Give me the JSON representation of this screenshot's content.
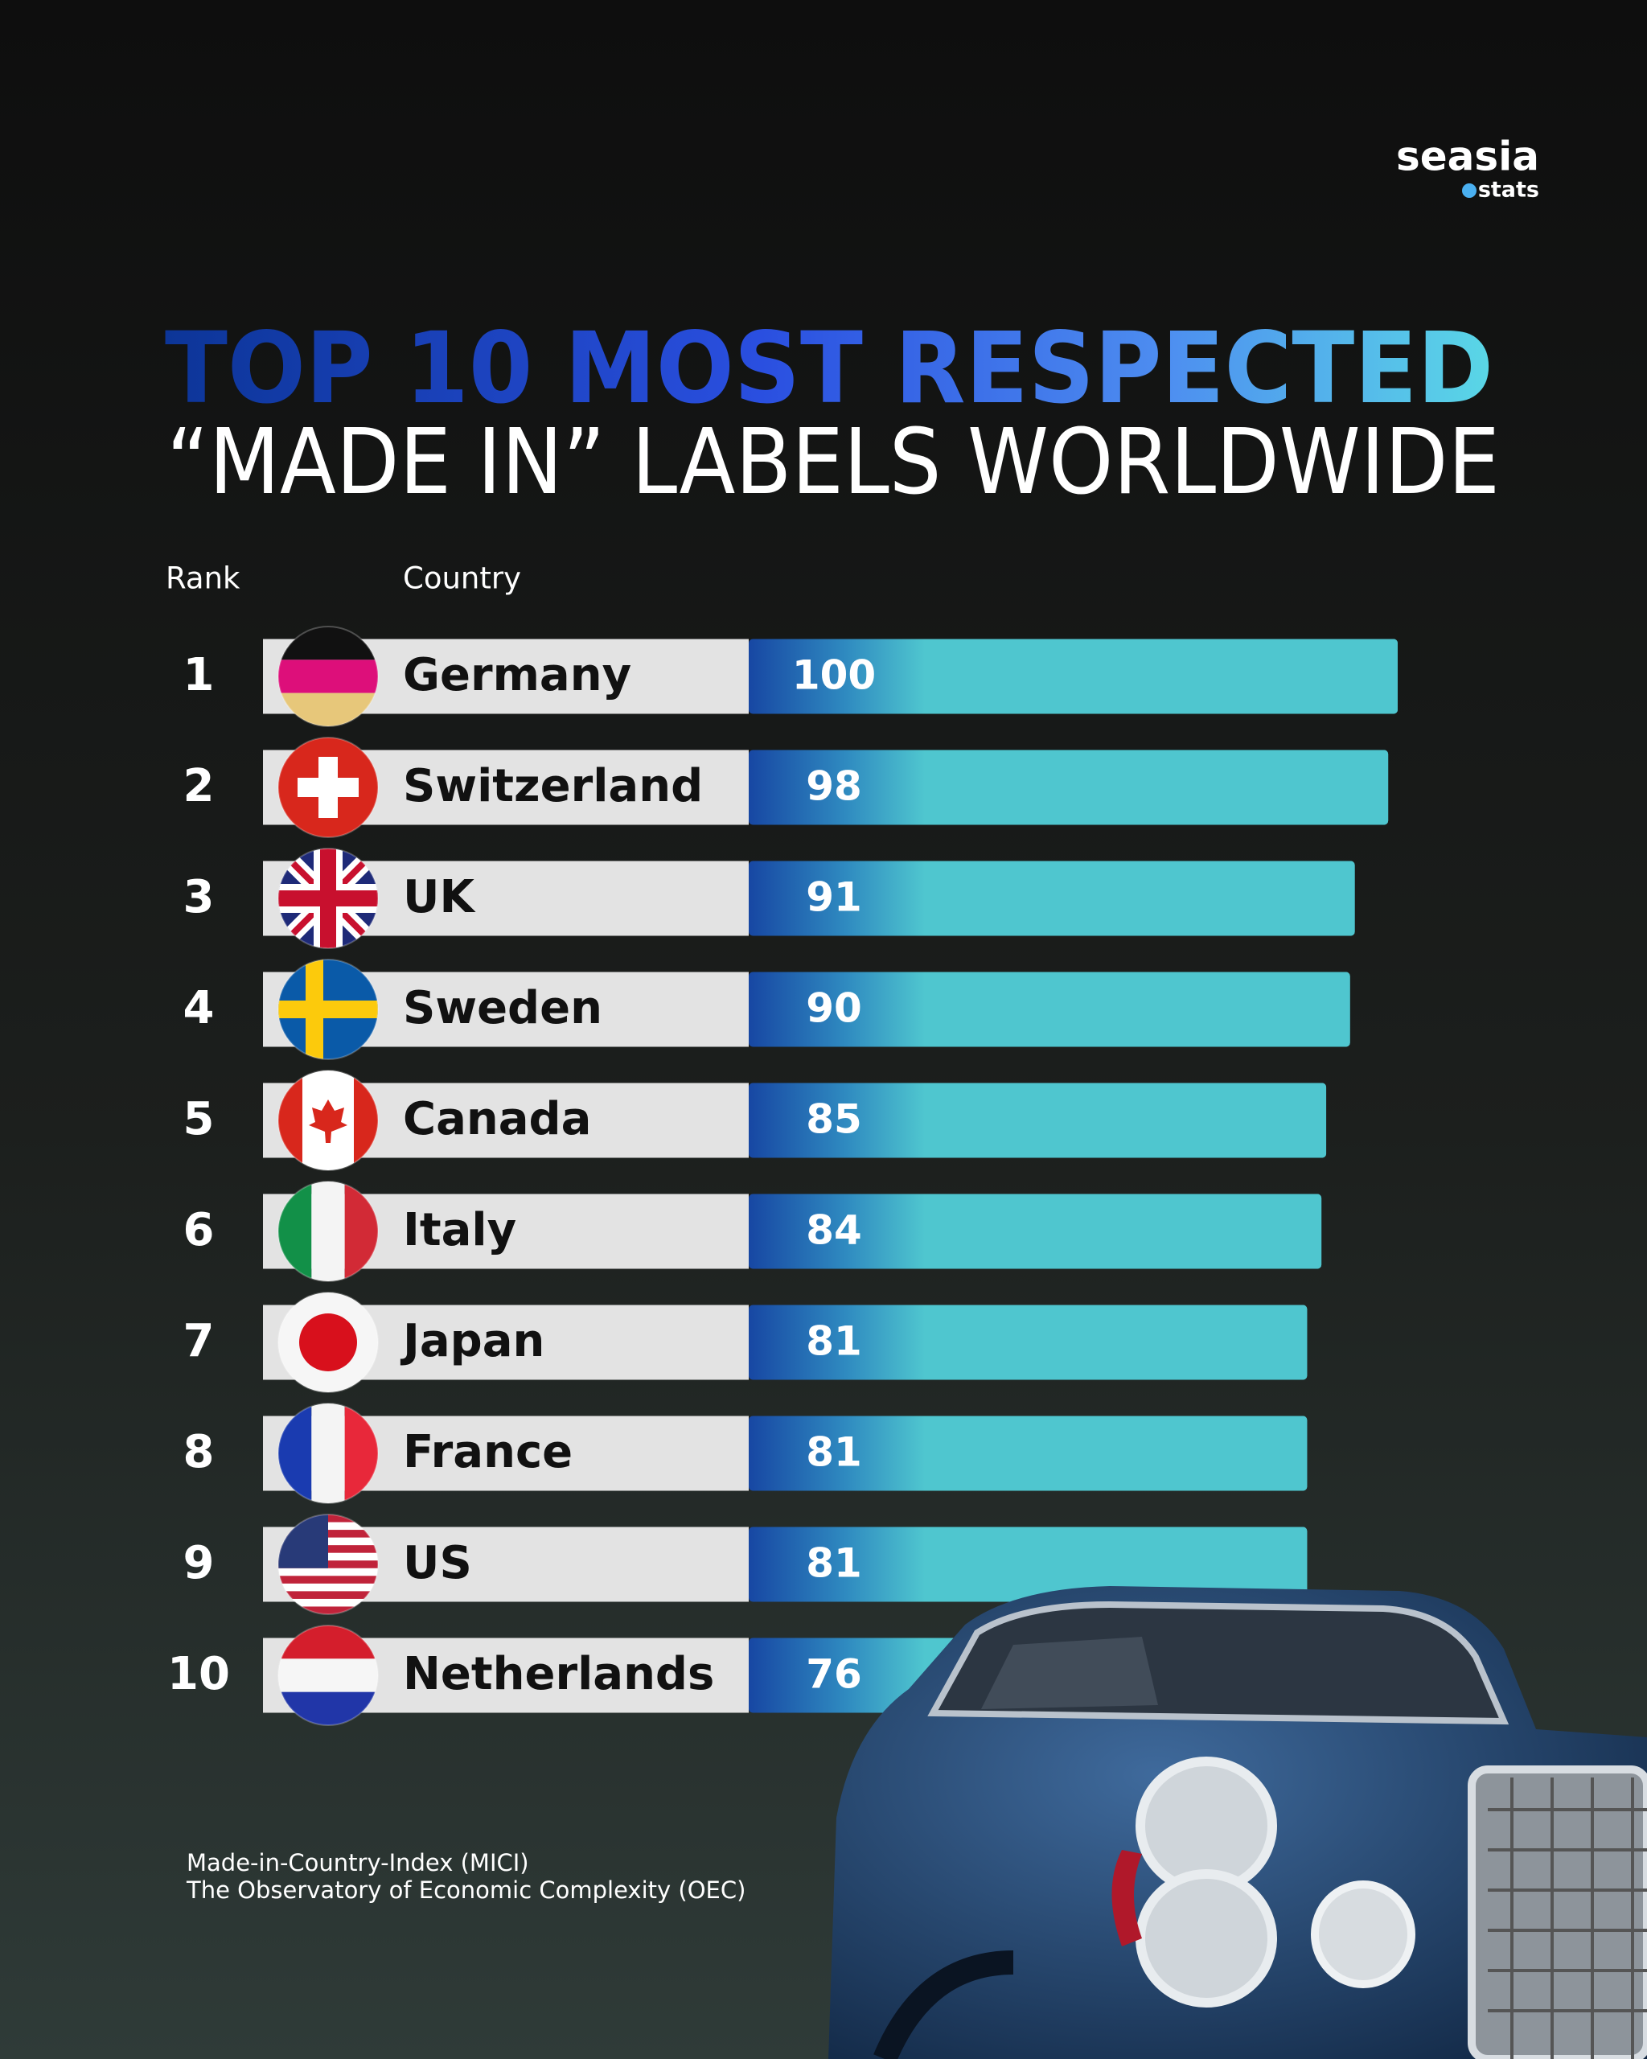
{
  "brand": {
    "name": "seasia",
    "sub": "stats"
  },
  "chart_data": {
    "type": "bar",
    "orientation": "horizontal",
    "title": "TOP 10 MOST RESPECTED",
    "subtitle": "“MADE IN” LABELS WORLDWIDE",
    "rank_label": "Rank",
    "category_label": "Country",
    "ranks": [
      1,
      2,
      3,
      4,
      5,
      6,
      7,
      8,
      9,
      10
    ],
    "categories": [
      "Germany",
      "Switzerland",
      "UK",
      "Sweden",
      "Canada",
      "Italy",
      "Japan",
      "France",
      "US",
      "Netherlands"
    ],
    "values": [
      100,
      98,
      91,
      90,
      85,
      84,
      81,
      81,
      81,
      76
    ],
    "color": "#4fc6cf"
  },
  "sources": [
    "Made-in-Country-Index (MICI)",
    "The Observatory of Economic Complexity (OEC)"
  ]
}
